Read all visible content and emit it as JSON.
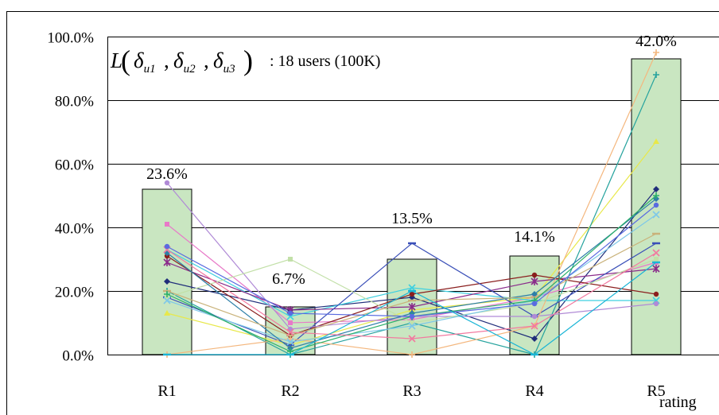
{
  "chart_data": {
    "type": "bar",
    "title": "",
    "annotation": {
      "function": "L",
      "arguments": [
        "δu1",
        "δu2",
        "δu3"
      ],
      "note": ": 18 users (100K)"
    },
    "xlabel": "rating",
    "ylabel": "",
    "categories": [
      "R1",
      "R2",
      "R3",
      "R4",
      "R5"
    ],
    "bar_values": [
      52.0,
      15.0,
      30.0,
      31.0,
      93.0
    ],
    "bar_labels": [
      "23.6%",
      "6.7%",
      "13.5%",
      "14.1%",
      "42.0%"
    ],
    "bar_color": "#c9e6c1",
    "ylim": [
      0,
      100
    ],
    "yticks": [
      0,
      20,
      40,
      60,
      80,
      100
    ],
    "ytick_labels": [
      "0.0%",
      "20.0%",
      "40.0%",
      "60.0%",
      "80.0%",
      "100.0%"
    ],
    "grid": "horizontal",
    "user_series": [
      {
        "color": "#1f2d7a",
        "values": [
          23,
          14,
          18,
          5,
          52
        ]
      },
      {
        "color": "#e879c8",
        "values": [
          41,
          10,
          11,
          18,
          29
        ]
      },
      {
        "color": "#e8e84a",
        "values": [
          13,
          3,
          14,
          18,
          67
        ]
      },
      {
        "color": "#3fd0e0",
        "values": [
          33,
          12,
          21,
          17,
          17
        ]
      },
      {
        "color": "#8a2a8a",
        "values": [
          29,
          14,
          15,
          23,
          27
        ]
      },
      {
        "color": "#8a1e1e",
        "values": [
          31,
          6,
          19,
          25,
          19
        ]
      },
      {
        "color": "#26a39e",
        "values": [
          20,
          0,
          10,
          0,
          88
        ]
      },
      {
        "color": "#3a4fb8",
        "values": [
          18,
          3,
          35,
          12,
          35
        ]
      },
      {
        "color": "#b08ad6",
        "values": [
          54,
          8,
          12,
          12,
          16
        ]
      },
      {
        "color": "#f4b77e",
        "values": [
          0,
          5,
          0,
          9,
          95
        ]
      },
      {
        "color": "#c2e0a8",
        "values": [
          18,
          30,
          10,
          16,
          30
        ]
      },
      {
        "color": "#7ec8e8",
        "values": [
          17,
          4,
          9,
          17,
          44
        ]
      },
      {
        "color": "#2d7fa8",
        "values": [
          32,
          2,
          13,
          19,
          49
        ]
      },
      {
        "color": "#c9b27a",
        "values": [
          20,
          6,
          17,
          18,
          38
        ]
      },
      {
        "color": "#2cb06a",
        "values": [
          19,
          1,
          12,
          17,
          50
        ]
      },
      {
        "color": "#f27aa0",
        "values": [
          33,
          7,
          5,
          9,
          32
        ]
      },
      {
        "color": "#5a6be0",
        "values": [
          34,
          13,
          12,
          16,
          47
        ]
      },
      {
        "color": "#1ab5d6",
        "values": [
          0,
          0,
          20,
          0,
          29
        ]
      }
    ]
  }
}
